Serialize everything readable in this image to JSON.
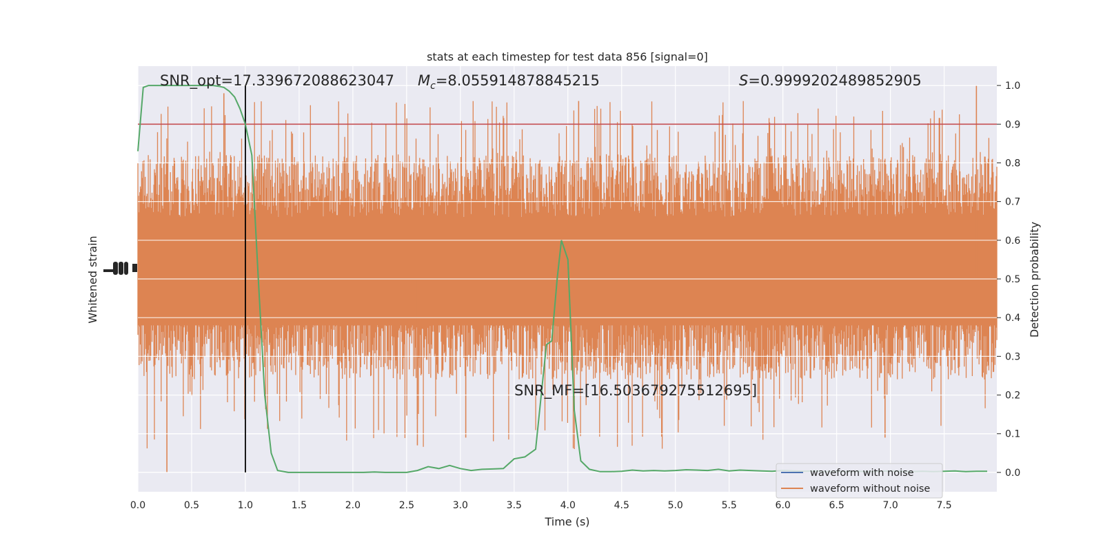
{
  "chart_data": {
    "type": "line",
    "title": "stats at each timestep for test data 856 [signal=0]",
    "xlabel": "Time (s)",
    "ylabel_left": "Whitened strain",
    "ylabel_right": "Detection probability",
    "xlim": [
      0.0,
      7.99
    ],
    "ylim_right": [
      -0.05,
      1.05
    ],
    "x_ticks": [
      "0.0",
      "0.5",
      "1.0",
      "1.5",
      "2.0",
      "2.5",
      "3.0",
      "3.5",
      "4.0",
      "4.5",
      "5.0",
      "5.5",
      "6.0",
      "6.5",
      "7.0",
      "7.5"
    ],
    "y_ticks_right": [
      "0.0",
      "0.1",
      "0.2",
      "0.3",
      "0.4",
      "0.5",
      "0.6",
      "0.7",
      "0.8",
      "0.9",
      "1.0"
    ],
    "grid": true,
    "legend_placement": "lower-right",
    "annotations": {
      "snr_opt": "SNR_opt=17.339672088623047",
      "mc_symbol": "M",
      "mc_sub": "c",
      "mc_value": "=8.055914878845215",
      "s_symbol": "S",
      "s_value": "=0.9999202489852905",
      "snr_mf": "SNR_MF=[16.503679275512695]"
    },
    "series": [
      {
        "name": "waveform with noise",
        "color": "#4c72b0"
      },
      {
        "name": "waveform without noise",
        "color": "#dd8452"
      },
      {
        "color": "#55a868",
        "x": [
          0.0,
          0.05,
          0.1,
          0.15,
          0.2,
          0.25,
          0.3,
          0.35,
          0.4,
          0.45,
          0.5,
          0.55,
          0.6,
          0.65,
          0.7,
          0.75,
          0.8,
          0.85,
          0.9,
          0.95,
          1.0,
          1.06,
          1.12,
          1.18,
          1.24,
          1.3,
          1.4,
          1.5,
          1.6,
          1.7,
          1.8,
          1.9,
          2.0,
          2.1,
          2.2,
          2.3,
          2.4,
          2.5,
          2.6,
          2.7,
          2.8,
          2.9,
          3.0,
          3.1,
          3.2,
          3.3,
          3.4,
          3.5,
          3.6,
          3.7,
          3.8,
          3.85,
          3.9,
          3.94,
          4.0,
          4.06,
          4.12,
          4.2,
          4.3,
          4.4,
          4.5,
          4.6,
          4.7,
          4.8,
          4.9,
          5.0,
          5.1,
          5.2,
          5.3,
          5.4,
          5.5,
          5.6,
          5.7,
          5.8,
          5.9,
          6.0,
          6.1,
          6.2,
          6.3,
          6.4,
          6.5,
          6.6,
          6.7,
          6.8,
          6.9,
          7.0,
          7.1,
          7.2,
          7.3,
          7.4,
          7.5,
          7.6,
          7.7,
          7.8,
          7.9
        ],
        "y": [
          0.83,
          0.995,
          1.0,
          1.0,
          1.0,
          1.0,
          1.0,
          1.0,
          1.0,
          1.0,
          1.0,
          1.0,
          1.0,
          1.0,
          1.0,
          0.998,
          0.995,
          0.985,
          0.97,
          0.94,
          0.9,
          0.82,
          0.5,
          0.2,
          0.05,
          0.005,
          0.0,
          0.0,
          0.0,
          0.0,
          0.0,
          0.0,
          0.0,
          0.0,
          0.001,
          0.0,
          0.0,
          0.0,
          0.005,
          0.015,
          0.01,
          0.018,
          0.01,
          0.005,
          0.008,
          0.009,
          0.01,
          0.035,
          0.04,
          0.06,
          0.33,
          0.34,
          0.5,
          0.6,
          0.55,
          0.16,
          0.03,
          0.008,
          0.002,
          0.002,
          0.003,
          0.006,
          0.004,
          0.005,
          0.004,
          0.005,
          0.007,
          0.006,
          0.005,
          0.008,
          0.004,
          0.006,
          0.005,
          0.004,
          0.003,
          0.005,
          0.004,
          0.003,
          0.004,
          0.002,
          0.003,
          0.002,
          0.003,
          0.002,
          0.003,
          0.004,
          0.003,
          0.002,
          0.003,
          0.002,
          0.003,
          0.004,
          0.002,
          0.003,
          0.003
        ]
      }
    ],
    "threshold_y": 0.9,
    "threshold_color": "#c44e52",
    "vline_x": 1.0,
    "strain_envelope": {
      "center": 0.5,
      "typical_low": 0.28,
      "typical_high": 0.78,
      "extreme_low": 0.0,
      "extreme_high": 1.0
    }
  }
}
